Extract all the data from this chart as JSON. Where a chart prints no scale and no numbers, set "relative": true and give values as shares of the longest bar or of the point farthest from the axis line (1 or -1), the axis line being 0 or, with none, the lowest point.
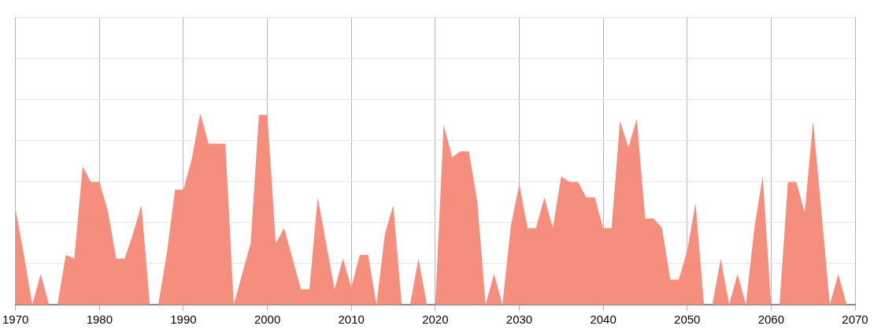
{
  "chart_data": {
    "type": "area",
    "relative": true,
    "grid": true,
    "legend": false,
    "marker": "none",
    "xlim": [
      1970,
      2070
    ],
    "xticks": [
      1970,
      1980,
      1990,
      2000,
      2010,
      2020,
      2030,
      2040,
      2050,
      2060,
      2070
    ],
    "x": [
      1970,
      1971,
      1972,
      1973,
      1974,
      1975,
      1976,
      1977,
      1978,
      1979,
      1980,
      1981,
      1982,
      1983,
      1984,
      1985,
      1986,
      1987,
      1988,
      1989,
      1990,
      1991,
      1992,
      1993,
      1994,
      1995,
      1996,
      1997,
      1998,
      1999,
      2000,
      2001,
      2002,
      2003,
      2004,
      2005,
      2006,
      2007,
      2008,
      2009,
      2010,
      2011,
      2012,
      2013,
      2014,
      2015,
      2016,
      2017,
      2018,
      2019,
      2020,
      2021,
      2022,
      2023,
      2024,
      2025,
      2026,
      2027,
      2028,
      2029,
      2030,
      2031,
      2032,
      2033,
      2034,
      2035,
      2036,
      2037,
      2038,
      2039,
      2040,
      2041,
      2042,
      2043,
      2044,
      2045,
      2046,
      2047,
      2048,
      2049,
      2050,
      2051,
      2052,
      2053,
      2054,
      2055,
      2056,
      2057,
      2058,
      2059,
      2060,
      2061,
      2062,
      2063,
      2064,
      2065,
      2066,
      2067,
      2068,
      2069
    ],
    "series": [
      {
        "color": "#f68e7e",
        "values": [
          0.5,
          0.26,
          0,
          0.16,
          0,
          0,
          0.26,
          0.24,
          0.72,
          0.64,
          0.64,
          0.49,
          0.24,
          0.24,
          0.37,
          0.52,
          0,
          0,
          0.26,
          0.6,
          0.6,
          0.76,
          1,
          0.84,
          0.84,
          0.84,
          0,
          0.16,
          0.32,
          0.99,
          0.99,
          0.32,
          0.4,
          0.24,
          0.08,
          0.08,
          0.56,
          0.32,
          0.08,
          0.24,
          0.09,
          0.26,
          0.26,
          0,
          0.37,
          0.52,
          0,
          0,
          0.24,
          0,
          0,
          0.94,
          0.77,
          0.8,
          0.8,
          0.54,
          0,
          0.16,
          0,
          0.41,
          0.63,
          0.4,
          0.4,
          0.56,
          0.4,
          0.67,
          0.64,
          0.64,
          0.56,
          0.56,
          0.4,
          0.4,
          0.96,
          0.82,
          0.97,
          0.45,
          0.45,
          0.4,
          0.13,
          0.13,
          0.28,
          0.53,
          0,
          0,
          0.24,
          0,
          0.16,
          0,
          0.4,
          0.67,
          0,
          0,
          0.64,
          0.64,
          0.48,
          0.96,
          0.48,
          0,
          0.16,
          0
        ]
      }
    ]
  }
}
